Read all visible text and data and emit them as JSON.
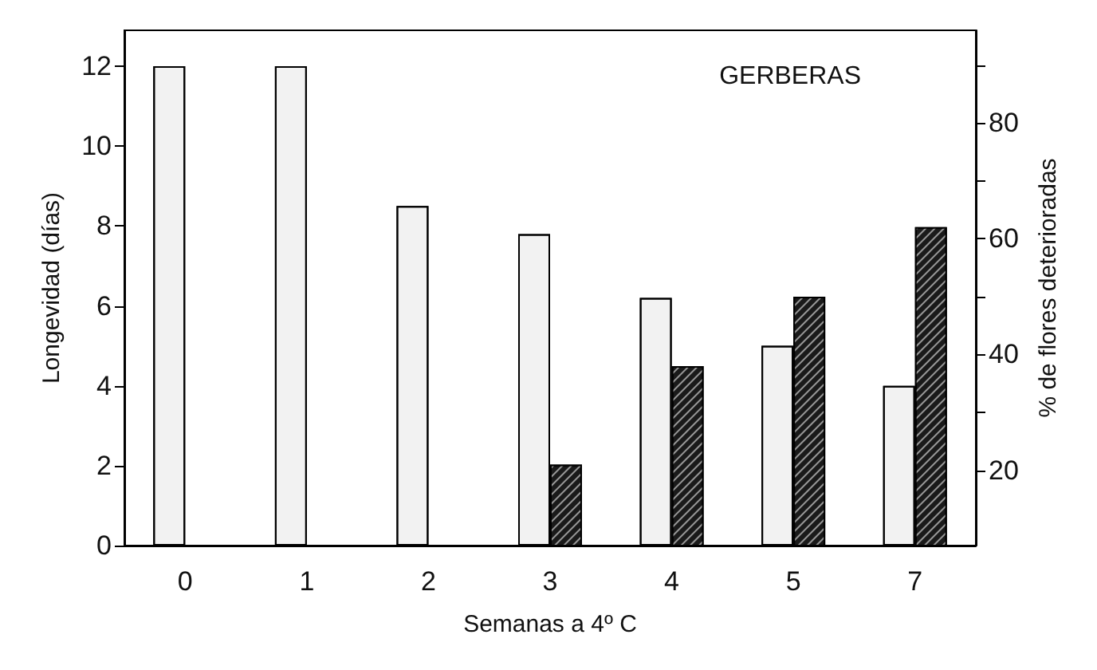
{
  "chart_data": {
    "type": "bar",
    "xlabel": "Semanas a 4º C",
    "ylabel": "Longevidad (días)",
    "y2label": "% de flores deterioradas",
    "annotations": [
      "GERBERAS"
    ],
    "categories": [
      "0",
      "1",
      "2",
      "3",
      "4",
      "5",
      "7"
    ],
    "series": [
      {
        "color": "#f2f2f2",
        "values": [
          12,
          12,
          8.5,
          7.8,
          6.2,
          5.0,
          4.0
        ]
      },
      {
        "color": "#1a1a1a",
        "axis": "y2",
        "values": [
          null,
          null,
          null,
          21,
          38,
          50,
          62
        ]
      }
    ],
    "ylim": [
      0,
      12.9
    ],
    "yticks": [
      0,
      2,
      4,
      6,
      8,
      10,
      12
    ],
    "y2lim": [
      7,
      96
    ],
    "y2ticks": [
      20,
      {
        "value": 30,
        "label": null
      },
      40,
      {
        "value": 50,
        "label": null
      },
      60,
      {
        "value": 70,
        "label": null
      },
      80,
      {
        "value": 90,
        "label": null
      }
    ],
    "grid": false
  }
}
